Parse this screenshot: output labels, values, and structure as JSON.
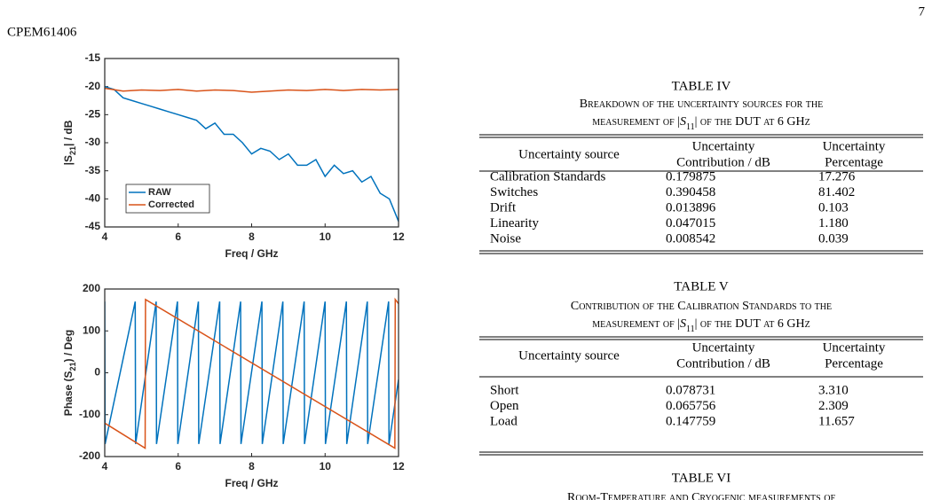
{
  "header": {
    "page_number": "7",
    "paper_id": "CPEM61406"
  },
  "chart_data": [
    {
      "type": "line",
      "ylabel": {
        "pre": "|S",
        "sub": "21",
        "post": "| / dB"
      },
      "xlabel": "Freq / GHz",
      "xlim": [
        4,
        12
      ],
      "xticks": [
        4,
        6,
        8,
        10,
        12
      ],
      "ylim": [
        -45,
        -15
      ],
      "yticks": [
        -45,
        -40,
        -35,
        -30,
        -25,
        -20,
        -15
      ],
      "grid": false,
      "legend": "lower left",
      "series": [
        {
          "name": "RAW",
          "color": "#0072bd",
          "x": [
            4,
            4.25,
            4.5,
            4.75,
            5,
            5.25,
            5.5,
            5.75,
            6,
            6.25,
            6.5,
            6.75,
            7,
            7.25,
            7.5,
            7.75,
            8,
            8.25,
            8.5,
            8.75,
            9,
            9.25,
            9.5,
            9.75,
            10,
            10.25,
            10.5,
            10.75,
            11,
            11.25,
            11.5,
            11.75,
            12
          ],
          "values": [
            -20,
            -20.5,
            -22,
            -22.5,
            -23,
            -23.5,
            -24,
            -24.5,
            -25,
            -25.5,
            -26,
            -27.5,
            -26.5,
            -28.5,
            -28.5,
            -30,
            -32,
            -31,
            -31.5,
            -33,
            -32,
            -34,
            -34,
            -33,
            -36,
            -34,
            -35.5,
            -35,
            -37,
            -36,
            -39,
            -40,
            -44
          ]
        },
        {
          "name": "Corrected",
          "color": "#d95319",
          "x": [
            4,
            4.5,
            5,
            5.5,
            6,
            6.5,
            7,
            7.5,
            8,
            8.5,
            9,
            9.5,
            10,
            10.5,
            11,
            11.5,
            12
          ],
          "values": [
            -20.3,
            -20.8,
            -20.6,
            -20.7,
            -20.5,
            -20.8,
            -20.6,
            -20.7,
            -21,
            -20.8,
            -20.6,
            -20.7,
            -20.5,
            -20.7,
            -20.5,
            -20.6,
            -20.5
          ]
        }
      ]
    },
    {
      "type": "line",
      "ylabel": {
        "pre": "Phase (S",
        "sub": "21",
        "post": ") / Deg"
      },
      "xlabel": "Freq / GHz",
      "xlim": [
        4,
        12
      ],
      "xticks": [
        4,
        6,
        8,
        10,
        12
      ],
      "ylim": [
        -200,
        200
      ],
      "yticks": [
        -200,
        -100,
        0,
        100,
        200
      ],
      "grid": false,
      "series": [
        {
          "name": "RAW",
          "color": "#0072bd",
          "x": [
            4,
            4.01,
            4.83,
            4.84,
            5.4,
            5.41,
            5.98,
            5.99,
            6.55,
            6.56,
            7.13,
            7.14,
            7.7,
            7.71,
            8.28,
            8.29,
            8.85,
            8.86,
            9.43,
            9.44,
            10,
            10.01,
            10.58,
            10.59,
            11.15,
            11.16,
            11.73,
            11.74,
            12
          ],
          "values": [
            170,
            -170,
            170,
            -170,
            170,
            -170,
            170,
            -170,
            170,
            -170,
            170,
            -170,
            170,
            -170,
            170,
            -170,
            170,
            -170,
            170,
            -170,
            170,
            -170,
            170,
            -170,
            170,
            -170,
            170,
            -170,
            -16
          ]
        },
        {
          "name": "Corrected",
          "color": "#d95319",
          "x": [
            4,
            5.1,
            5.11,
            11.9,
            11.91,
            12
          ],
          "values": [
            -120,
            -180,
            175,
            -180,
            175,
            165
          ]
        }
      ]
    }
  ],
  "tables": [
    {
      "title": "TABLE IV",
      "caption_line1": "Breakdown of the uncertainty sources for the",
      "caption_line2": {
        "pre": "measurement of |",
        "symbol": "S",
        "subscript": "11",
        "post": "| of the DUT at 6 GHz"
      },
      "columns": [
        [
          "Uncertainty source"
        ],
        [
          "Uncertainty",
          "Contribution / dB"
        ],
        [
          "Uncertainty",
          "Percentage"
        ]
      ],
      "rows": [
        [
          "Calibration Standards",
          "0.179875",
          "17.276"
        ],
        [
          "Switches",
          "0.390458",
          "81.402"
        ],
        [
          "Drift",
          "0.013896",
          "0.103"
        ],
        [
          "Linearity",
          "0.047015",
          "1.180"
        ],
        [
          "Noise",
          "0.008542",
          "0.039"
        ]
      ]
    },
    {
      "title": "TABLE V",
      "caption_line1": "Contribution of the Calibration Standards to the",
      "caption_line2": {
        "pre": "measurement of |",
        "symbol": "S",
        "subscript": "11",
        "post": "| of the DUT at 6 GHz"
      },
      "columns": [
        [
          "Uncertainty source"
        ],
        [
          "Uncertainty",
          "Contribution / dB"
        ],
        [
          "Uncertainty",
          "Percentage"
        ]
      ],
      "rows": [
        [
          "Short",
          "0.078731",
          "3.310"
        ],
        [
          "Open",
          "0.065756",
          "2.309"
        ],
        [
          "Load",
          "0.147759",
          "11.657"
        ]
      ]
    },
    {
      "title": "TABLE VI",
      "caption_line1": "Room-Temperature and Cryogenic measurements of"
    }
  ]
}
